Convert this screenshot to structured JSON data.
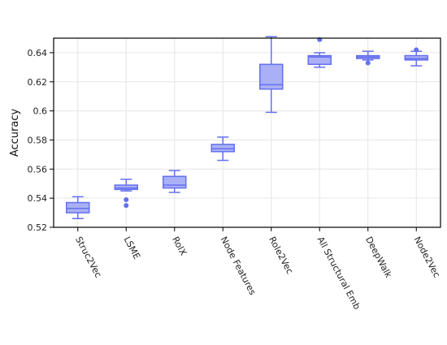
{
  "chart_data": {
    "type": "box",
    "title": "",
    "xlabel": "",
    "ylabel": "Accuracy",
    "ylim": [
      0.52,
      0.65
    ],
    "yticks": [
      0.52,
      0.54,
      0.56,
      0.58,
      0.6,
      0.62,
      0.64
    ],
    "ytick_labels": [
      "0.52",
      "0.54",
      "0.56",
      "0.58",
      "0.6",
      "0.62",
      "0.64"
    ],
    "grid": true,
    "legend": "none",
    "colors": {
      "box_fill": "#aab0f5",
      "box_stroke": "#6470ee",
      "outlier": "#6470ee",
      "grid": "#e6e6e6",
      "frame": "#000000"
    },
    "categories": [
      "Struc2Vec",
      "LSME",
      "RolX",
      "Node Features",
      "Role2Vec",
      "All Structural Emb",
      "DeepWalk",
      "Node2Vec"
    ],
    "boxes": [
      {
        "category": "Struc2Vec",
        "min": 0.526,
        "q1": 0.53,
        "median": 0.533,
        "q3": 0.537,
        "max": 0.541,
        "outliers": []
      },
      {
        "category": "LSME",
        "min": 0.545,
        "q1": 0.546,
        "median": 0.547,
        "q3": 0.549,
        "max": 0.553,
        "outliers": [
          0.539,
          0.535
        ]
      },
      {
        "category": "RolX",
        "min": 0.544,
        "q1": 0.547,
        "median": 0.549,
        "q3": 0.555,
        "max": 0.559,
        "outliers": []
      },
      {
        "category": "Node Features",
        "min": 0.566,
        "q1": 0.572,
        "median": 0.574,
        "q3": 0.577,
        "max": 0.582,
        "outliers": []
      },
      {
        "category": "Role2Vec",
        "min": 0.599,
        "q1": 0.615,
        "median": 0.618,
        "q3": 0.632,
        "max": 0.651,
        "outliers": []
      },
      {
        "category": "All Structural Emb",
        "min": 0.63,
        "q1": 0.632,
        "median": 0.637,
        "q3": 0.638,
        "max": 0.64,
        "outliers": [
          0.649
        ]
      },
      {
        "category": "DeepWalk",
        "min": 0.635,
        "q1": 0.636,
        "median": 0.637,
        "q3": 0.638,
        "max": 0.641,
        "outliers": [
          0.633
        ]
      },
      {
        "category": "Node2Vec",
        "min": 0.631,
        "q1": 0.635,
        "median": 0.636,
        "q3": 0.638,
        "max": 0.641,
        "outliers": [
          0.642
        ]
      }
    ]
  }
}
